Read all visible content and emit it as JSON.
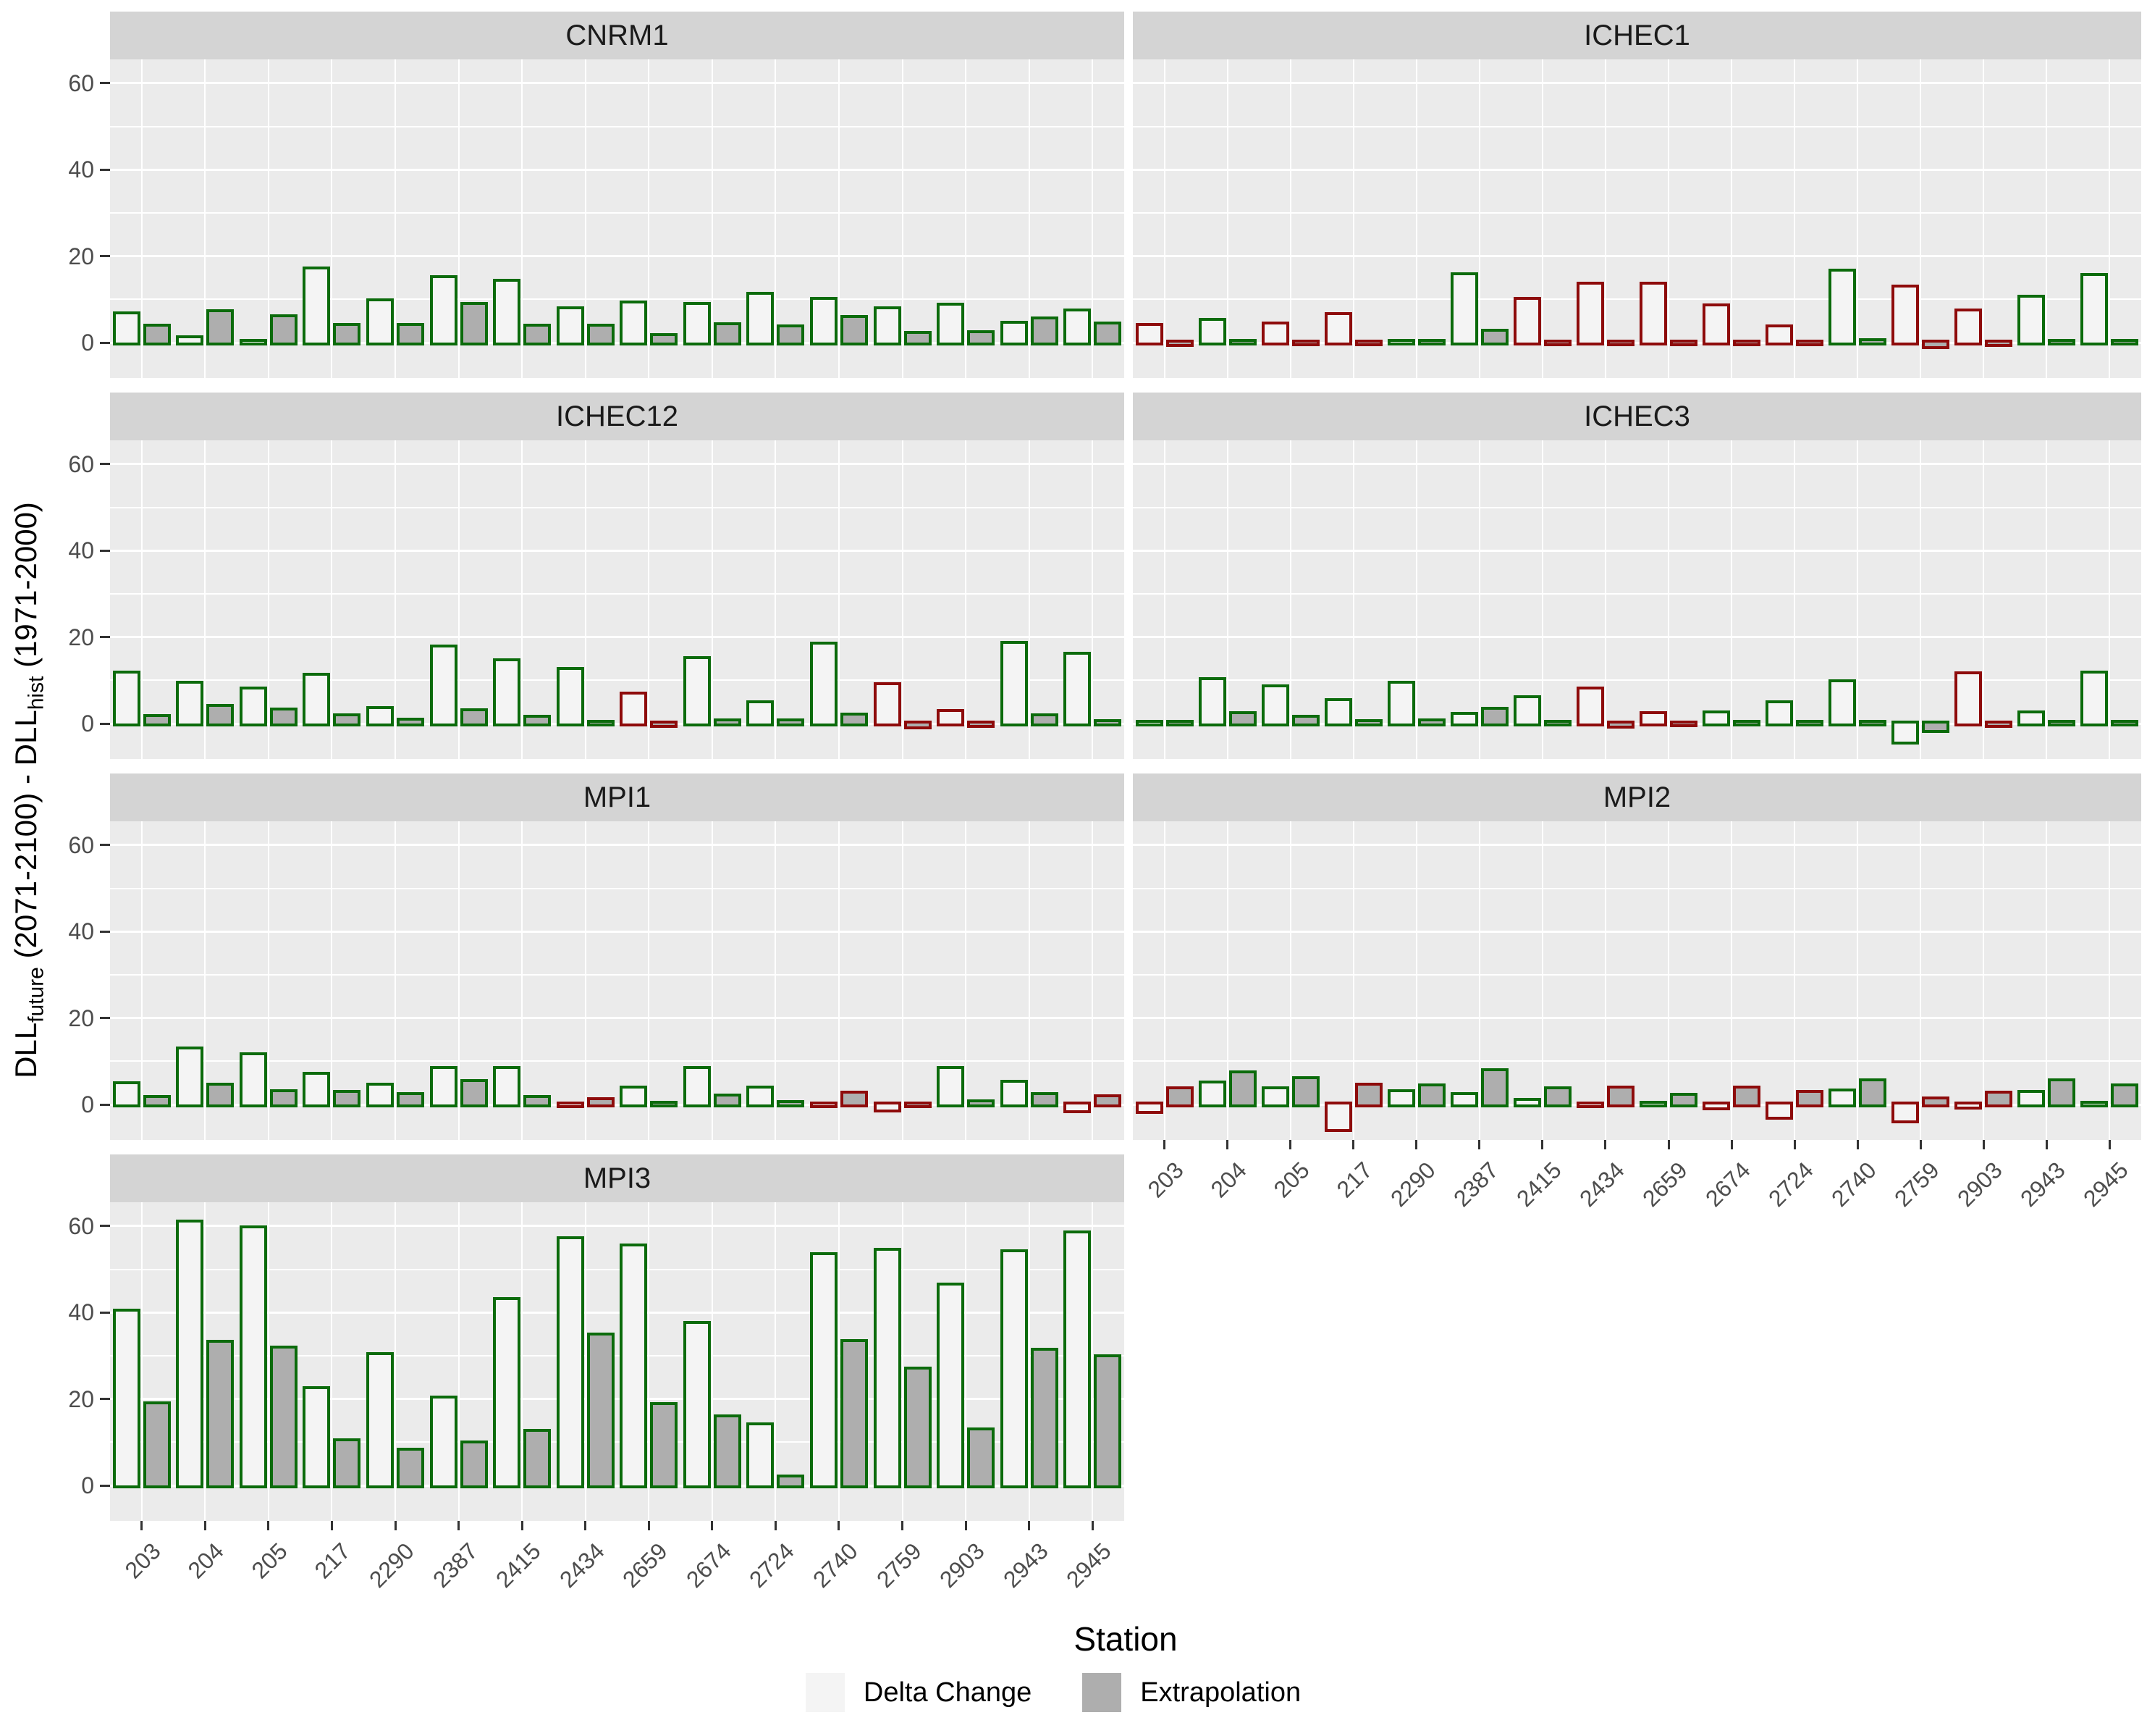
{
  "chart_data": {
    "type": "bar",
    "title": "",
    "xlabel": "Station",
    "ylabel_parts": {
      "p1": "DLL",
      "s1": "future",
      "p2": " (2071-2100) - DLL",
      "s2": "hist",
      "p3": " (1971-2000)"
    },
    "y_ticks": [
      60,
      40,
      20,
      0
    ],
    "ylim": [
      -8.2,
      65.5
    ],
    "grid": {
      "major": [
        0,
        20,
        40,
        60
      ],
      "minor": [
        10,
        30,
        50
      ]
    },
    "legend_position": "bottom",
    "categories": [
      "203",
      "204",
      "205",
      "217",
      "2290",
      "2387",
      "2415",
      "2434",
      "2659",
      "2674",
      "2724",
      "2740",
      "2759",
      "2903",
      "2943",
      "2945"
    ],
    "legend": {
      "delta_label": "Delta Change",
      "extrap_label": "Extrapolation"
    },
    "colors": {
      "green_outline": "#0b6b0b",
      "red_outline": "#8e0b0b",
      "delta_fill": "#f4f4f4",
      "extrap_fill": "#aeaeae",
      "panel_bg": "#ebebeb",
      "strip_bg": "#d4d4d4",
      "gridline": "#ffffff",
      "axis_text": "#4d4d4d"
    },
    "facets": [
      {
        "title": "CNRM1",
        "row": 0,
        "col": 0,
        "show_x_axis": false,
        "series": [
          {
            "name": "Delta Change",
            "values": [
              7.2,
              1.7,
              0.4,
              17.6,
              10.2,
              15.6,
              14.7,
              8.4,
              9.7,
              9.4,
              11.8,
              10.6,
              8.3,
              9.2,
              5.0,
              7.9
            ]
          },
          {
            "name": "Extrapolation",
            "values": [
              4.3,
              7.7,
              6.5,
              4.6,
              4.6,
              9.3,
              4.3,
              4.3,
              2.2,
              4.7,
              4.2,
              6.3,
              2.6,
              2.9,
              6.1,
              4.8
            ]
          }
        ],
        "outline": [
          "green",
          "green",
          "green",
          "green",
          "green",
          "green",
          "green",
          "green",
          "green",
          "green",
          "green",
          "green",
          "green",
          "green",
          "green",
          "green"
        ]
      },
      {
        "title": "ICHEC1",
        "row": 0,
        "col": 1,
        "show_x_axis": false,
        "series": [
          {
            "name": "Delta Change",
            "values": [
              4.6,
              5.7,
              4.9,
              7.1,
              0.3,
              16.3,
              10.5,
              14.1,
              14.0,
              9.0,
              4.2,
              17.1,
              13.4,
              7.9,
              11.0,
              16.0
            ]
          },
          {
            "name": "Extrapolation",
            "values": [
              -1.0,
              0.4,
              -0.4,
              -0.3,
              0.3,
              3.2,
              -0.3,
              -0.8,
              -0.9,
              -0.5,
              -0.3,
              1.0,
              -1.5,
              -1.0,
              0.3,
              0.3
            ]
          }
        ],
        "outline": [
          "red",
          "green",
          "red",
          "red",
          "green",
          "green",
          "red",
          "red",
          "red",
          "red",
          "red",
          "green",
          "red",
          "red",
          "green",
          "green"
        ]
      },
      {
        "title": "ICHEC12",
        "row": 1,
        "col": 0,
        "show_x_axis": false,
        "series": [
          {
            "name": "Delta Change",
            "values": [
              12.3,
              9.8,
              8.6,
              11.8,
              4.1,
              18.2,
              15.0,
              13.0,
              7.4,
              15.5,
              5.4,
              19.0,
              9.5,
              3.4,
              19.1,
              16.5
            ]
          },
          {
            "name": "Extrapolation",
            "values": [
              2.2,
              4.6,
              3.7,
              2.3,
              1.3,
              3.5,
              2.0,
              0.3,
              -1.0,
              1.1,
              1.1,
              2.5,
              -1.4,
              -1.0,
              2.3,
              1.0
            ]
          }
        ],
        "outline": [
          "green",
          "green",
          "green",
          "green",
          "green",
          "green",
          "green",
          "green",
          "red",
          "green",
          "green",
          "green",
          "red",
          "red",
          "green",
          "green"
        ]
      },
      {
        "title": "ICHEC3",
        "row": 1,
        "col": 1,
        "show_x_axis": false,
        "series": [
          {
            "name": "Delta Change",
            "values": [
              0.8,
              10.8,
              9.1,
              5.9,
              9.9,
              2.7,
              6.5,
              8.6,
              2.8,
              3.0,
              5.3,
              10.3,
              -4.8,
              12.0,
              3.0,
              12.3
            ]
          },
          {
            "name": "Extrapolation",
            "values": [
              0.3,
              2.9,
              2.0,
              1.0,
              1.2,
              3.8,
              0.9,
              -1.1,
              -0.9,
              0.6,
              0.7,
              0.4,
              -2.1,
              -1.0,
              0.3,
              0.3
            ]
          }
        ],
        "outline": [
          "green",
          "green",
          "green",
          "green",
          "green",
          "green",
          "green",
          "red",
          "red",
          "green",
          "green",
          "green",
          "green",
          "red",
          "green",
          "green"
        ]
      },
      {
        "title": "MPI1",
        "row": 2,
        "col": 0,
        "show_x_axis": false,
        "series": [
          {
            "name": "Delta Change",
            "values": [
              5.4,
              13.4,
              12.1,
              7.6,
              5.1,
              8.9,
              8.8,
              -0.3,
              4.3,
              8.9,
              4.3,
              -0.7,
              -1.9,
              8.9,
              5.7,
              -2.0
            ]
          },
          {
            "name": "Extrapolation",
            "values": [
              2.1,
              5.0,
              3.6,
              3.4,
              2.9,
              5.9,
              2.1,
              1.7,
              0.7,
              2.5,
              1.0,
              3.1,
              -0.2,
              1.2,
              2.9,
              2.3
            ]
          }
        ],
        "outline": [
          "green",
          "green",
          "green",
          "green",
          "green",
          "green",
          "green",
          "red",
          "green",
          "green",
          "green",
          "red",
          "red",
          "green",
          "green",
          "red"
        ]
      },
      {
        "title": "MPI2",
        "row": 2,
        "col": 1,
        "show_x_axis": true,
        "series": [
          {
            "name": "Delta Change",
            "values": [
              -2.1,
              5.6,
              4.2,
              -6.4,
              3.5,
              2.8,
              1.5,
              -0.7,
              0.9,
              -1.4,
              -3.6,
              3.7,
              -4.3,
              -1.1,
              3.3,
              0.7
            ]
          },
          {
            "name": "Extrapolation",
            "values": [
              4.2,
              7.8,
              6.5,
              5.0,
              4.8,
              8.3,
              4.2,
              4.4,
              2.6,
              4.4,
              3.3,
              6.0,
              1.8,
              3.2,
              6.0,
              4.8
            ]
          }
        ],
        "outline": [
          "red",
          "green",
          "green",
          "red",
          "green",
          "green",
          "green",
          "red",
          "green",
          "red",
          "red",
          "green",
          "red",
          "red",
          "green",
          "green"
        ]
      },
      {
        "title": "MPI3",
        "row": 3,
        "col": 0,
        "show_x_axis": true,
        "series": [
          {
            "name": "Delta Change",
            "values": [
              40.8,
              61.5,
              60.1,
              22.9,
              30.9,
              20.7,
              43.5,
              57.7,
              55.9,
              38.1,
              14.5,
              53.9,
              54.9,
              46.9,
              54.6,
              59.0
            ]
          },
          {
            "name": "Extrapolation",
            "values": [
              19.5,
              33.7,
              32.3,
              10.9,
              8.7,
              10.4,
              13.1,
              35.4,
              19.3,
              16.4,
              2.5,
              33.9,
              27.5,
              13.4,
              31.9,
              30.4
            ]
          }
        ],
        "outline": [
          "green",
          "green",
          "green",
          "green",
          "green",
          "green",
          "green",
          "green",
          "green",
          "green",
          "green",
          "green",
          "green",
          "green",
          "green",
          "green"
        ]
      }
    ]
  }
}
